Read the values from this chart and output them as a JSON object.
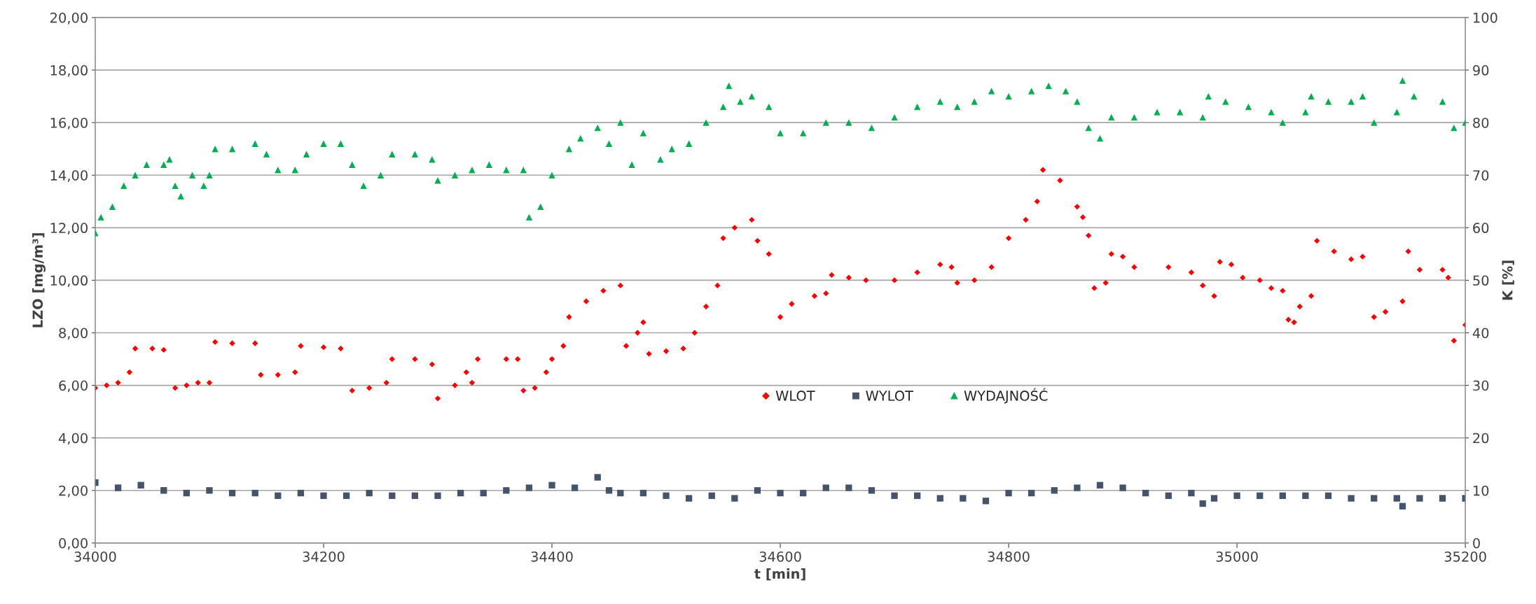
{
  "chart_data": {
    "type": "scatter",
    "xlabel": "t [min]",
    "ylabel": "LZO [mg/m³]",
    "y2label": "K [%]",
    "xlim": [
      34000,
      35200
    ],
    "xticks": [
      34000,
      34200,
      34400,
      34600,
      34800,
      35000,
      35200
    ],
    "ylim": [
      0,
      20
    ],
    "yticks": [
      {
        "value": 0,
        "label": "0,00"
      },
      {
        "value": 2,
        "label": "2,00"
      },
      {
        "value": 4,
        "label": "4,00"
      },
      {
        "value": 6,
        "label": "6,00"
      },
      {
        "value": 8,
        "label": "8,00"
      },
      {
        "value": 10,
        "label": "10,00"
      },
      {
        "value": 12,
        "label": "12,00"
      },
      {
        "value": 14,
        "label": "14,00"
      },
      {
        "value": 16,
        "label": "16,00"
      },
      {
        "value": 18,
        "label": "18,00"
      },
      {
        "value": 20,
        "label": "20,00"
      }
    ],
    "y2lim": [
      0,
      100
    ],
    "y2ticks": [
      0,
      10,
      20,
      30,
      40,
      50,
      60,
      70,
      80,
      90,
      100
    ],
    "grid": "y",
    "legend": "bottom",
    "series": [
      {
        "name": "WLOT",
        "color": "#ff0000",
        "marker": "diamond",
        "x": [
          34000,
          34010,
          34020,
          34030,
          34035,
          34050,
          34060,
          34070,
          34080,
          34090,
          34100,
          34105,
          34120,
          34140,
          34145,
          34160,
          34175,
          34180,
          34200,
          34215,
          34225,
          34240,
          34255,
          34260,
          34280,
          34295,
          34300,
          34315,
          34325,
          34330,
          34335,
          34360,
          34370,
          34375,
          34385,
          34395,
          34400,
          34410,
          34415,
          34430,
          34445,
          34460,
          34465,
          34475,
          34480,
          34485,
          34500,
          34515,
          34525,
          34535,
          34545,
          34550,
          34560,
          34575,
          34580,
          34590,
          34600,
          34610,
          34630,
          34640,
          34645,
          34660,
          34675,
          34700,
          34720,
          34740,
          34750,
          34755,
          34770,
          34785,
          34800,
          34815,
          34825,
          34830,
          34845,
          34860,
          34865,
          34870,
          34875,
          34885,
          34890,
          34900,
          34910,
          34940,
          34960,
          34970,
          34980,
          34985,
          34995,
          35005,
          35020,
          35030,
          35040,
          35045,
          35050,
          35055,
          35065,
          35070,
          35085,
          35100,
          35110,
          35120,
          35130,
          35145,
          35150,
          35160,
          35180,
          35185,
          35190,
          35200
        ],
        "values": [
          5.9,
          6.0,
          6.1,
          6.5,
          7.4,
          7.4,
          7.35,
          5.9,
          6.0,
          6.1,
          6.1,
          7.65,
          7.6,
          7.6,
          6.4,
          6.4,
          6.5,
          7.5,
          7.45,
          7.4,
          5.8,
          5.9,
          6.1,
          7.0,
          7.0,
          6.8,
          5.5,
          6.0,
          6.5,
          6.1,
          7.0,
          7.0,
          7.0,
          5.8,
          5.9,
          6.5,
          7.0,
          7.5,
          8.6,
          9.2,
          9.6,
          9.8,
          7.5,
          8.0,
          8.4,
          7.2,
          7.3,
          7.4,
          8.0,
          9.0,
          9.8,
          11.6,
          12.0,
          12.3,
          11.5,
          11.0,
          8.6,
          9.1,
          9.4,
          9.5,
          10.2,
          10.1,
          10.0,
          10.0,
          10.3,
          10.6,
          10.5,
          9.9,
          10.0,
          10.5,
          11.6,
          12.3,
          13.0,
          14.2,
          13.8,
          12.8,
          12.4,
          11.7,
          9.7,
          9.9,
          11.0,
          10.9,
          10.5,
          10.5,
          10.3,
          9.8,
          9.4,
          10.7,
          10.6,
          10.1,
          10.0,
          9.7,
          9.6,
          8.5,
          8.4,
          9.0,
          9.4,
          11.5,
          11.1,
          10.8,
          10.9,
          8.6,
          8.8,
          9.2,
          11.1,
          10.4,
          10.4,
          10.1,
          7.7,
          8.3
        ]
      },
      {
        "name": "WYLOT",
        "color": "#44546a",
        "marker": "square",
        "x": [
          34000,
          34020,
          34040,
          34060,
          34080,
          34100,
          34120,
          34140,
          34160,
          34180,
          34200,
          34220,
          34240,
          34260,
          34280,
          34300,
          34320,
          34340,
          34360,
          34380,
          34400,
          34420,
          34440,
          34450,
          34460,
          34480,
          34500,
          34520,
          34540,
          34560,
          34580,
          34600,
          34620,
          34640,
          34660,
          34680,
          34700,
          34720,
          34740,
          34760,
          34780,
          34800,
          34820,
          34840,
          34860,
          34880,
          34900,
          34920,
          34940,
          34960,
          34970,
          34980,
          35000,
          35020,
          35040,
          35060,
          35080,
          35100,
          35120,
          35140,
          35145,
          35160,
          35180,
          35200
        ],
        "values": [
          2.3,
          2.1,
          2.2,
          2.0,
          1.9,
          2.0,
          1.9,
          1.9,
          1.8,
          1.9,
          1.8,
          1.8,
          1.9,
          1.8,
          1.8,
          1.8,
          1.9,
          1.9,
          2.0,
          2.1,
          2.2,
          2.1,
          2.5,
          2.0,
          1.9,
          1.9,
          1.8,
          1.7,
          1.8,
          1.7,
          2.0,
          1.9,
          1.9,
          2.1,
          2.1,
          2.0,
          1.8,
          1.8,
          1.7,
          1.7,
          1.6,
          1.9,
          1.9,
          2.0,
          2.1,
          2.2,
          2.1,
          1.9,
          1.8,
          1.9,
          1.5,
          1.7,
          1.8,
          1.8,
          1.8,
          1.8,
          1.8,
          1.7,
          1.7,
          1.7,
          1.4,
          1.7,
          1.7,
          1.7
        ]
      },
      {
        "name": "WYDAJNOŚĆ",
        "color": "#00b050",
        "marker": "triangle",
        "axis": "y2",
        "x": [
          34000,
          34005,
          34015,
          34025,
          34035,
          34045,
          34060,
          34065,
          34070,
          34075,
          34085,
          34095,
          34100,
          34105,
          34120,
          34140,
          34150,
          34160,
          34175,
          34185,
          34200,
          34215,
          34225,
          34235,
          34250,
          34260,
          34280,
          34295,
          34300,
          34315,
          34330,
          34345,
          34360,
          34375,
          34380,
          34390,
          34400,
          34415,
          34425,
          34440,
          34450,
          34460,
          34470,
          34480,
          34495,
          34505,
          34520,
          34535,
          34550,
          34555,
          34565,
          34575,
          34590,
          34600,
          34620,
          34640,
          34660,
          34680,
          34700,
          34720,
          34740,
          34755,
          34770,
          34785,
          34800,
          34820,
          34835,
          34850,
          34860,
          34870,
          34880,
          34890,
          34910,
          34930,
          34950,
          34970,
          34975,
          34990,
          35010,
          35030,
          35040,
          35060,
          35065,
          35080,
          35100,
          35110,
          35120,
          35140,
          35145,
          35155,
          35180,
          35190,
          35200
        ],
        "values": [
          59,
          62,
          64,
          68,
          70,
          72,
          72,
          73,
          68,
          66,
          70,
          68,
          70,
          75,
          75,
          76,
          74,
          71,
          71,
          74,
          76,
          76,
          72,
          68,
          70,
          74,
          74,
          73,
          69,
          70,
          71,
          72,
          71,
          71,
          62,
          64,
          70,
          75,
          77,
          79,
          76,
          80,
          72,
          78,
          73,
          75,
          76,
          80,
          83,
          87,
          84,
          85,
          83,
          78,
          78,
          80,
          80,
          79,
          81,
          83,
          84,
          83,
          84,
          86,
          85,
          86,
          87,
          86,
          84,
          79,
          77,
          81,
          81,
          82,
          82,
          81,
          85,
          84,
          83,
          82,
          80,
          82,
          85,
          84,
          84,
          85,
          80,
          82,
          88,
          85,
          84,
          79,
          80
        ]
      }
    ]
  }
}
